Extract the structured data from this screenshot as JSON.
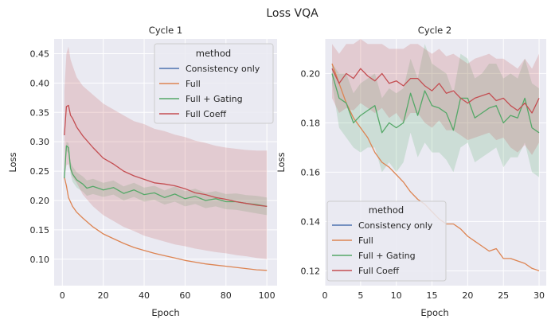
{
  "figure": {
    "title": "Loss VQA"
  },
  "legend": {
    "title": "method",
    "entries": [
      {
        "name": "Consistency only",
        "color": "#4c72b0"
      },
      {
        "name": "Full",
        "color": "#dd8452"
      },
      {
        "name": "Full + Gating",
        "color": "#55a868"
      },
      {
        "name": "Full Coeff",
        "color": "#c44e52"
      }
    ]
  },
  "chart_data": [
    {
      "type": "line",
      "title": "Cycle 1",
      "xlabel": "Epoch",
      "ylabel": "Loss",
      "xlim": [
        -4,
        105
      ],
      "ylim": [
        0.055,
        0.475
      ],
      "xticks": [
        0,
        20,
        40,
        60,
        80,
        100
      ],
      "yticks": [
        0.1,
        0.15,
        0.2,
        0.25,
        0.3,
        0.35,
        0.4,
        0.45
      ],
      "grid": true,
      "legend_position": "top-right",
      "series": [
        {
          "name": "Full",
          "x": [
            1,
            2,
            3,
            5,
            7,
            10,
            15,
            20,
            25,
            30,
            35,
            40,
            45,
            50,
            55,
            60,
            65,
            70,
            75,
            80,
            85,
            90,
            95,
            100
          ],
          "y": [
            0.24,
            0.225,
            0.205,
            0.19,
            0.18,
            0.17,
            0.155,
            0.143,
            0.135,
            0.127,
            0.12,
            0.115,
            0.11,
            0.106,
            0.102,
            0.098,
            0.095,
            0.092,
            0.09,
            0.088,
            0.086,
            0.084,
            0.082,
            0.081
          ]
        },
        {
          "name": "Full + Gating",
          "x": [
            1,
            2,
            3,
            4,
            5,
            7,
            10,
            12,
            15,
            20,
            25,
            30,
            35,
            40,
            45,
            50,
            55,
            60,
            65,
            70,
            75,
            80,
            85,
            90,
            95,
            100
          ],
          "y": [
            0.238,
            0.293,
            0.29,
            0.255,
            0.245,
            0.235,
            0.228,
            0.221,
            0.224,
            0.218,
            0.222,
            0.212,
            0.218,
            0.21,
            0.213,
            0.205,
            0.211,
            0.203,
            0.207,
            0.2,
            0.203,
            0.198,
            0.198,
            0.195,
            0.193,
            0.19
          ],
          "band_low": [
            0.235,
            0.285,
            0.28,
            0.245,
            0.232,
            0.222,
            0.215,
            0.208,
            0.211,
            0.206,
            0.21,
            0.2,
            0.206,
            0.198,
            0.201,
            0.193,
            0.198,
            0.19,
            0.194,
            0.187,
            0.19,
            0.185,
            0.184,
            0.181,
            0.178,
            0.175
          ],
          "band_high": [
            0.241,
            0.3,
            0.298,
            0.265,
            0.258,
            0.248,
            0.241,
            0.234,
            0.237,
            0.23,
            0.234,
            0.224,
            0.23,
            0.222,
            0.225,
            0.217,
            0.224,
            0.216,
            0.22,
            0.213,
            0.216,
            0.211,
            0.212,
            0.209,
            0.208,
            0.205
          ]
        },
        {
          "name": "Full Coeff",
          "x": [
            1,
            2,
            3,
            4,
            5,
            7,
            10,
            15,
            20,
            25,
            30,
            35,
            40,
            45,
            50,
            55,
            60,
            65,
            70,
            75,
            80,
            85,
            90,
            95,
            100
          ],
          "y": [
            0.311,
            0.36,
            0.362,
            0.345,
            0.34,
            0.325,
            0.31,
            0.29,
            0.272,
            0.262,
            0.25,
            0.242,
            0.236,
            0.23,
            0.228,
            0.225,
            0.22,
            0.213,
            0.21,
            0.205,
            0.202,
            0.198,
            0.195,
            0.192,
            0.19
          ],
          "band_low": [
            0.236,
            0.26,
            0.262,
            0.25,
            0.24,
            0.23,
            0.21,
            0.19,
            0.175,
            0.165,
            0.155,
            0.148,
            0.14,
            0.135,
            0.13,
            0.125,
            0.122,
            0.118,
            0.115,
            0.112,
            0.11,
            0.107,
            0.105,
            0.102,
            0.1
          ],
          "band_high": [
            0.386,
            0.45,
            0.462,
            0.44,
            0.43,
            0.41,
            0.395,
            0.38,
            0.365,
            0.355,
            0.345,
            0.335,
            0.33,
            0.322,
            0.318,
            0.312,
            0.308,
            0.302,
            0.298,
            0.293,
            0.29,
            0.288,
            0.286,
            0.285,
            0.285
          ]
        }
      ]
    },
    {
      "type": "line",
      "title": "Cycle 2",
      "xlabel": "Epoch",
      "ylabel": "Loss",
      "xlim": [
        0,
        31
      ],
      "ylim": [
        0.114,
        0.214
      ],
      "xticks": [
        0,
        5,
        10,
        15,
        20,
        25,
        30
      ],
      "yticks": [
        0.12,
        0.14,
        0.16,
        0.18,
        0.2
      ],
      "grid": true,
      "legend_position": "lower-left",
      "series": [
        {
          "name": "Full",
          "x": [
            1,
            2,
            3,
            4,
            5,
            6,
            7,
            8,
            9,
            10,
            11,
            12,
            13,
            14,
            15,
            16,
            17,
            18,
            19,
            20,
            21,
            22,
            23,
            24,
            25,
            26,
            27,
            28,
            29,
            30
          ],
          "y": [
            0.204,
            0.196,
            0.188,
            0.182,
            0.178,
            0.174,
            0.168,
            0.164,
            0.162,
            0.159,
            0.156,
            0.152,
            0.149,
            0.147,
            0.144,
            0.141,
            0.139,
            0.139,
            0.137,
            0.134,
            0.132,
            0.13,
            0.128,
            0.129,
            0.125,
            0.125,
            0.124,
            0.123,
            0.121,
            0.12
          ]
        },
        {
          "name": "Full + Gating",
          "x": [
            1,
            2,
            3,
            4,
            5,
            6,
            7,
            8,
            9,
            10,
            11,
            12,
            13,
            14,
            15,
            16,
            17,
            18,
            19,
            20,
            21,
            22,
            23,
            24,
            25,
            26,
            27,
            28,
            29,
            30
          ],
          "y": [
            0.2,
            0.19,
            0.188,
            0.18,
            0.183,
            0.185,
            0.187,
            0.176,
            0.18,
            0.178,
            0.18,
            0.192,
            0.183,
            0.193,
            0.187,
            0.186,
            0.184,
            0.177,
            0.19,
            0.19,
            0.182,
            0.184,
            0.186,
            0.187,
            0.18,
            0.183,
            0.182,
            0.19,
            0.178,
            0.176
          ],
          "band_low": [
            0.196,
            0.178,
            0.174,
            0.17,
            0.168,
            0.17,
            0.17,
            0.16,
            0.164,
            0.16,
            0.164,
            0.176,
            0.166,
            0.172,
            0.168,
            0.168,
            0.165,
            0.16,
            0.17,
            0.172,
            0.164,
            0.166,
            0.168,
            0.17,
            0.162,
            0.166,
            0.166,
            0.172,
            0.16,
            0.158
          ],
          "band_high": [
            0.204,
            0.2,
            0.2,
            0.192,
            0.196,
            0.198,
            0.2,
            0.19,
            0.194,
            0.192,
            0.194,
            0.206,
            0.198,
            0.212,
            0.204,
            0.202,
            0.2,
            0.192,
            0.208,
            0.206,
            0.198,
            0.2,
            0.204,
            0.204,
            0.198,
            0.2,
            0.198,
            0.206,
            0.196,
            0.194
          ]
        },
        {
          "name": "Full Coeff",
          "x": [
            1,
            2,
            3,
            4,
            5,
            6,
            7,
            8,
            9,
            10,
            11,
            12,
            13,
            14,
            15,
            16,
            17,
            18,
            19,
            20,
            21,
            22,
            23,
            24,
            25,
            26,
            27,
            28,
            29,
            30
          ],
          "y": [
            0.202,
            0.196,
            0.2,
            0.198,
            0.202,
            0.199,
            0.197,
            0.2,
            0.196,
            0.197,
            0.195,
            0.198,
            0.198,
            0.195,
            0.193,
            0.196,
            0.192,
            0.193,
            0.19,
            0.188,
            0.19,
            0.191,
            0.192,
            0.189,
            0.19,
            0.187,
            0.185,
            0.188,
            0.184,
            0.19
          ],
          "band_low": [
            0.19,
            0.184,
            0.186,
            0.185,
            0.188,
            0.186,
            0.184,
            0.186,
            0.182,
            0.184,
            0.18,
            0.184,
            0.184,
            0.18,
            0.178,
            0.181,
            0.177,
            0.177,
            0.175,
            0.173,
            0.174,
            0.175,
            0.176,
            0.173,
            0.174,
            0.17,
            0.168,
            0.171,
            0.167,
            0.172
          ],
          "band_high": [
            0.212,
            0.208,
            0.212,
            0.212,
            0.214,
            0.212,
            0.212,
            0.212,
            0.21,
            0.21,
            0.21,
            0.212,
            0.212,
            0.21,
            0.208,
            0.21,
            0.207,
            0.208,
            0.206,
            0.204,
            0.206,
            0.207,
            0.208,
            0.206,
            0.206,
            0.204,
            0.202,
            0.206,
            0.202,
            0.208
          ]
        }
      ]
    }
  ]
}
